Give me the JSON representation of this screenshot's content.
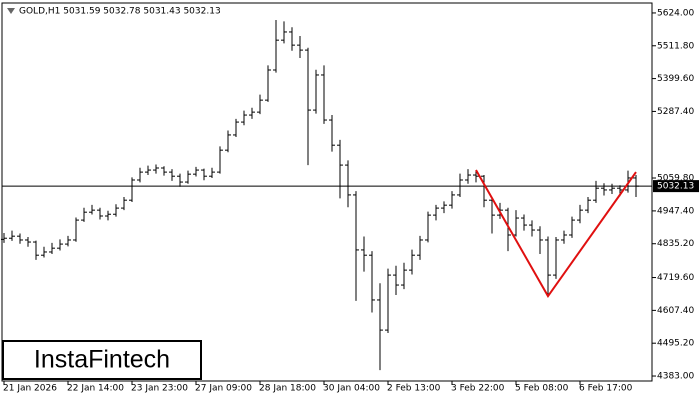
{
  "chart_data": {
    "type": "ohlc",
    "header": "GOLD,H1  5031.59 5032.78 5031.43 5032.13",
    "watermark": "InstaFintech",
    "color": "#000000",
    "categories": [
      "21 Jan 2026",
      null,
      null,
      null,
      null,
      null,
      null,
      null,
      "22 Jan 14:00",
      null,
      null,
      null,
      null,
      null,
      null,
      null,
      "23 Jan 23:00",
      null,
      null,
      null,
      null,
      null,
      null,
      null,
      "27 Jan 09:00",
      null,
      null,
      null,
      null,
      null,
      null,
      null,
      "28 Jan 18:00",
      null,
      null,
      null,
      null,
      null,
      null,
      null,
      "30 Jan 04:00",
      null,
      null,
      null,
      null,
      null,
      null,
      null,
      "2 Feb 13:00",
      null,
      null,
      null,
      null,
      null,
      null,
      null,
      "3 Feb 22:00",
      null,
      null,
      null,
      null,
      null,
      null,
      null,
      "5 Feb 08:00",
      null,
      null,
      null,
      null,
      null,
      null,
      null,
      "6 Feb 17:00",
      null,
      null,
      null,
      null,
      null,
      null,
      null
    ],
    "open": [
      4850,
      4854,
      4861,
      4848,
      4841,
      4796,
      4807,
      4820,
      4834,
      4848,
      4916,
      4943,
      4950,
      4930,
      4936,
      4957,
      4984,
      5053,
      5080,
      5087,
      5094,
      5080,
      5066,
      5046,
      5073,
      5087,
      5066,
      5080,
      5155,
      5207,
      5251,
      5275,
      5285,
      5326,
      5429,
      5531,
      5559,
      5514,
      5497,
      5292,
      5412,
      5258,
      5172,
      5104,
      5002,
      4814,
      4796,
      4643,
      4540,
      4728,
      4694,
      4745,
      4796,
      4848,
      4933,
      4957,
      4967,
      5002,
      5053,
      5070,
      5066,
      4984,
      4933,
      4950,
      4865,
      4923,
      4899,
      4882,
      4848,
      4728,
      4848,
      4865,
      4916,
      4950,
      4984,
      5025,
      5019,
      5025,
      5019,
      5060
    ],
    "high": [
      4872,
      4880,
      4870,
      4858,
      4846,
      4825,
      4838,
      4850,
      4862,
      4925,
      4958,
      4968,
      4958,
      4948,
      4970,
      4995,
      5062,
      5095,
      5102,
      5106,
      5100,
      5090,
      5075,
      5085,
      5098,
      5092,
      5095,
      5168,
      5222,
      5262,
      5290,
      5300,
      5345,
      5445,
      5600,
      5595,
      5575,
      5545,
      5505,
      5430,
      5445,
      5275,
      5190,
      5120,
      5015,
      4860,
      4810,
      4700,
      4750,
      4760,
      4770,
      4815,
      4862,
      4945,
      4968,
      4980,
      5015,
      5075,
      5090,
      5085,
      5070,
      4995,
      4975,
      4958,
      4950,
      4935,
      4915,
      4895,
      4860,
      4858,
      4880,
      4928,
      4968,
      4995,
      5050,
      5042,
      5040,
      5035,
      5085,
      5070
    ],
    "low": [
      4838,
      4845,
      4835,
      4825,
      4780,
      4788,
      4800,
      4812,
      4826,
      4842,
      4910,
      4935,
      4918,
      4915,
      4928,
      4950,
      4978,
      5045,
      5070,
      5075,
      5068,
      5050,
      5030,
      5040,
      5065,
      5052,
      5060,
      5075,
      5148,
      5200,
      5240,
      5262,
      5278,
      5320,
      5420,
      5520,
      5495,
      5470,
      5104,
      5280,
      5245,
      5150,
      4990,
      4960,
      4640,
      4740,
      4600,
      4403,
      4530,
      4660,
      4680,
      4730,
      4780,
      4840,
      4915,
      4940,
      4955,
      4995,
      5040,
      5045,
      4960,
      4870,
      4920,
      4810,
      4860,
      4880,
      4860,
      4800,
      4660,
      4715,
      4835,
      4855,
      4905,
      4940,
      4975,
      5000,
      5005,
      4998,
      5010,
      4995
    ],
    "close": [
      4854,
      4861,
      4848,
      4841,
      4796,
      4807,
      4820,
      4834,
      4848,
      4916,
      4943,
      4950,
      4930,
      4936,
      4957,
      4984,
      5053,
      5080,
      5087,
      5094,
      5080,
      5066,
      5046,
      5073,
      5087,
      5066,
      5080,
      5155,
      5207,
      5251,
      5275,
      5285,
      5326,
      5429,
      5531,
      5559,
      5514,
      5497,
      5292,
      5412,
      5258,
      5172,
      5104,
      5002,
      4814,
      4796,
      4643,
      4540,
      4728,
      4694,
      4745,
      4796,
      4848,
      4933,
      4957,
      4967,
      5002,
      5053,
      5070,
      5066,
      4984,
      4933,
      4950,
      4865,
      4923,
      4899,
      4882,
      4848,
      4728,
      4848,
      4865,
      4916,
      4950,
      4984,
      5025,
      5019,
      5025,
      5019,
      5060,
      5032
    ],
    "ylim": [
      4366,
      5658
    ],
    "yticks": [
      {
        "value": 5624,
        "label": "5624.00"
      },
      {
        "value": 5511.8,
        "label": "5511.80"
      },
      {
        "value": 5399.6,
        "label": "5399.60"
      },
      {
        "value": 5287.4,
        "label": "5287.40"
      },
      {
        "value": 5059.8,
        "label": "5059.80"
      },
      {
        "value": 4947.4,
        "label": "4947.40"
      },
      {
        "value": 4835.2,
        "label": "4835.20"
      },
      {
        "value": 4719.6,
        "label": "4719.60"
      },
      {
        "value": 4607.4,
        "label": "4607.40"
      },
      {
        "value": 4495.2,
        "label": "4495.20"
      },
      {
        "value": 4383,
        "label": "4383.00"
      }
    ],
    "price_line": {
      "value": 5032.13,
      "label": "5032.13"
    },
    "pattern": {
      "color": "#e01010",
      "x": [
        59,
        68,
        79
      ],
      "values": [
        5087,
        4656,
        5080
      ]
    }
  }
}
